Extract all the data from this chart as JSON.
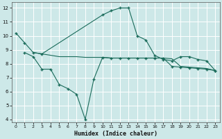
{
  "xlabel": "Humidex (Indice chaleur)",
  "bg_color": "#cde8e8",
  "grid_color": "#b0d4d4",
  "line_color": "#1a6b5a",
  "xlim": [
    -0.5,
    23.5
  ],
  "ylim": [
    3.8,
    12.4
  ],
  "xticks": [
    0,
    1,
    2,
    3,
    4,
    5,
    6,
    7,
    8,
    9,
    10,
    11,
    12,
    13,
    14,
    15,
    16,
    17,
    18,
    19,
    20,
    21,
    22,
    23
  ],
  "yticks": [
    4,
    5,
    6,
    7,
    8,
    9,
    10,
    11,
    12
  ],
  "curve1_x": [
    0,
    1,
    2,
    3,
    10,
    11,
    12,
    13,
    14,
    15,
    16,
    17,
    18,
    19,
    20,
    21,
    22,
    23
  ],
  "curve1_y": [
    10.2,
    9.5,
    8.8,
    8.7,
    11.5,
    11.8,
    12.0,
    12.0,
    10.0,
    9.7,
    8.6,
    8.3,
    8.2,
    8.5,
    8.5,
    8.3,
    8.2,
    7.5
  ],
  "curve2_x": [
    2,
    3,
    4,
    5,
    6,
    7,
    8,
    9,
    10,
    11,
    12,
    13,
    14,
    15,
    16,
    17,
    18,
    19,
    20,
    21,
    22,
    23
  ],
  "curve2_y": [
    8.8,
    8.7,
    8.6,
    8.5,
    8.5,
    8.5,
    8.45,
    8.45,
    8.45,
    8.4,
    8.4,
    8.4,
    8.4,
    8.4,
    8.4,
    8.4,
    8.35,
    7.8,
    7.75,
    7.7,
    7.65,
    7.5
  ],
  "curve3_x": [
    1,
    2,
    3,
    4,
    5,
    6,
    7,
    8,
    9,
    10,
    11,
    12,
    13,
    14,
    15,
    16,
    17,
    18,
    19,
    20,
    21,
    22,
    23
  ],
  "curve3_y": [
    8.8,
    8.5,
    7.6,
    7.6,
    6.5,
    6.2,
    5.8,
    4.0,
    6.9,
    8.45,
    8.4,
    8.4,
    8.4,
    8.4,
    8.4,
    8.4,
    8.4,
    7.8,
    7.75,
    7.7,
    7.65,
    7.6,
    7.5
  ]
}
